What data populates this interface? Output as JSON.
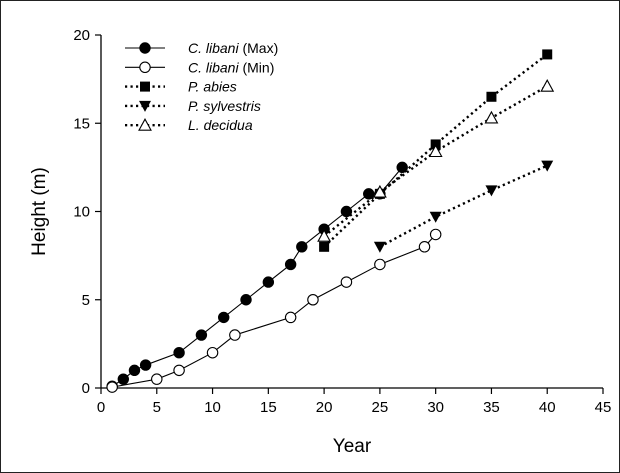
{
  "chart_data": {
    "type": "line",
    "xlabel": "Year",
    "ylabel": "Height (m)",
    "xlim": [
      0,
      45
    ],
    "ylim": [
      0,
      20
    ],
    "xticks": [
      0,
      5,
      10,
      15,
      20,
      25,
      30,
      35,
      40,
      45
    ],
    "yticks": [
      0,
      5,
      10,
      15,
      20
    ],
    "grid": false,
    "legend_position": "top-left",
    "series": [
      {
        "name": "C. libani (Max)",
        "name_italic": "C. libani",
        "name_plain": " (Max)",
        "marker": "circle-filled",
        "line": "solid",
        "color": "#000000",
        "x": [
          1,
          2,
          3,
          4,
          7,
          9,
          11,
          13,
          15,
          17,
          18,
          20,
          22,
          24,
          25,
          27
        ],
        "y": [
          0.1,
          0.5,
          1.0,
          1.3,
          2.0,
          3.0,
          4.0,
          5.0,
          6.0,
          7.0,
          8.0,
          9.0,
          10.0,
          11.0,
          11.0,
          12.5
        ]
      },
      {
        "name": "C. libani (Min)",
        "name_italic": "C. libani",
        "name_plain": " (Min)",
        "marker": "circle-open",
        "line": "solid",
        "color": "#000000",
        "x": [
          1,
          5,
          7,
          10,
          12,
          17,
          19,
          22,
          25,
          29,
          30
        ],
        "y": [
          0.05,
          0.5,
          1.0,
          2.0,
          3.0,
          4.0,
          5.0,
          6.0,
          7.0,
          8.0,
          8.7
        ]
      },
      {
        "name": "P. abies",
        "name_italic": "P. abies",
        "name_plain": "",
        "marker": "square-filled",
        "line": "dotted",
        "color": "#000000",
        "x": [
          20,
          25,
          30,
          35,
          40
        ],
        "y": [
          8.0,
          11.0,
          13.8,
          16.5,
          18.9
        ]
      },
      {
        "name": "P. sylvestris",
        "name_italic": "P. sylvestris",
        "name_plain": "",
        "marker": "triangle-down-filled",
        "line": "dotted",
        "color": "#000000",
        "x": [
          25,
          30,
          35,
          40
        ],
        "y": [
          8.0,
          9.7,
          11.2,
          12.6
        ]
      },
      {
        "name": "L. decidua",
        "name_italic": "L. decidua",
        "name_plain": "",
        "marker": "triangle-up-open",
        "line": "dotted",
        "color": "#000000",
        "x": [
          20,
          25,
          30,
          35,
          40
        ],
        "y": [
          8.6,
          11.1,
          13.4,
          15.3,
          17.1
        ]
      }
    ]
  }
}
